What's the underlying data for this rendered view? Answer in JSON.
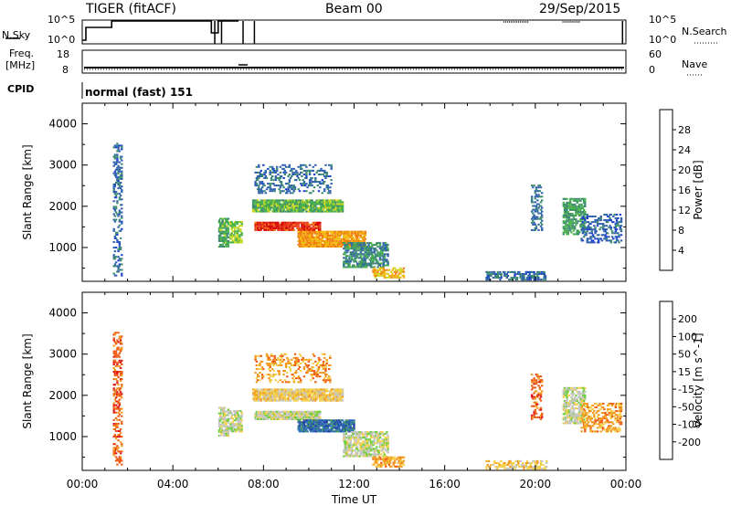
{
  "header": {
    "station": "TIGER (fitACF)",
    "beam": "Beam 00",
    "date": "29/Sep/2015"
  },
  "status_panels": {
    "nsky_label": "N.Sky",
    "nsky_ticks": [
      "10^5",
      "10^0"
    ],
    "nsearch_label": "N.Search",
    "nsearch_ticks": [
      "10^5",
      "10^0"
    ],
    "freq_label_1": "Freq.",
    "freq_label_2": "[MHz]",
    "freq_ticks": [
      "18",
      "8"
    ],
    "nave_label": "Nave",
    "nave_ticks": [
      "60",
      "0"
    ],
    "cpid_label": "CPID",
    "cpid_value": "normal (fast) 151"
  },
  "colors": {
    "power_scale": [
      "#1c3fd1",
      "#2e5fb0",
      "#3d8a70",
      "#47b24a",
      "#c8d81e",
      "#f2b80c",
      "#f07c10",
      "#e8371a",
      "#d40000"
    ],
    "velocity_scale": [
      "#223ba8",
      "#2f6fb3",
      "#3c9d58",
      "#6ccf3a",
      "#c4c4c0",
      "#f5d04a",
      "#f39a1a",
      "#ef5a12",
      "#dd1515"
    ]
  },
  "chart_data": [
    {
      "type": "heatmap",
      "name_in_figure": "power",
      "title": "",
      "ylabel": "Slant Range [km]",
      "xlabel": "Time UT",
      "ylim": [
        180,
        4500
      ],
      "y_ticks": [
        "4000",
        "3000",
        "2000",
        "1000"
      ],
      "x_ticks": [
        "00:00",
        "04:00",
        "08:00",
        "12:00",
        "16:00",
        "20:00",
        "00:00"
      ],
      "colorbar_label": "Power [dB]",
      "colorbar_ticks": [
        "28",
        "24",
        "20",
        "16",
        "12",
        "8",
        "4"
      ],
      "colorbar_range": [
        0,
        32
      ],
      "regions": [
        {
          "t0": 1.35,
          "t1": 1.75,
          "r0": 300,
          "r1": 3500,
          "v": 5,
          "density": 0.35
        },
        {
          "t0": 6.0,
          "t1": 6.4,
          "r0": 1000,
          "r1": 1700,
          "v": 11,
          "density": 0.7
        },
        {
          "t0": 6.5,
          "t1": 7.0,
          "r0": 1100,
          "r1": 1600,
          "v": 14,
          "density": 0.6
        },
        {
          "t0": 7.5,
          "t1": 11.5,
          "r0": 1850,
          "r1": 2150,
          "v": 12,
          "density": 0.8
        },
        {
          "t0": 7.6,
          "t1": 10.5,
          "r0": 1400,
          "r1": 1600,
          "v": 28,
          "density": 0.85
        },
        {
          "t0": 9.5,
          "t1": 12.5,
          "r0": 1000,
          "r1": 1400,
          "v": 22,
          "density": 0.8
        },
        {
          "t0": 7.6,
          "t1": 11.0,
          "r0": 2300,
          "r1": 3000,
          "v": 5,
          "density": 0.25
        },
        {
          "t0": 11.5,
          "t1": 13.5,
          "r0": 500,
          "r1": 1100,
          "v": 8,
          "density": 0.6
        },
        {
          "t0": 12.8,
          "t1": 14.2,
          "r0": 250,
          "r1": 500,
          "v": 20,
          "density": 0.5
        },
        {
          "t0": 17.8,
          "t1": 20.5,
          "r0": 200,
          "r1": 420,
          "v": 5,
          "density": 0.45
        },
        {
          "t0": 19.8,
          "t1": 20.3,
          "r0": 1400,
          "r1": 2500,
          "v": 6,
          "density": 0.35
        },
        {
          "t0": 21.2,
          "t1": 22.2,
          "r0": 1300,
          "r1": 2200,
          "v": 10,
          "density": 0.55
        },
        {
          "t0": 22.0,
          "t1": 23.8,
          "r0": 1100,
          "r1": 1800,
          "v": 4,
          "density": 0.35
        }
      ]
    },
    {
      "type": "heatmap",
      "name_in_figure": "velocity",
      "title": "",
      "ylabel": "Slant Range [km]",
      "xlabel": "Time UT",
      "ylim": [
        180,
        4500
      ],
      "y_ticks": [
        "4000",
        "3000",
        "2000",
        "1000"
      ],
      "x_ticks": [
        "00:00",
        "04:00",
        "08:00",
        "12:00",
        "16:00",
        "20:00",
        "00:00"
      ],
      "colorbar_label": "Velocity [m s^-1]",
      "colorbar_ticks": [
        "200",
        "100",
        "50",
        "15",
        "-15",
        "-50",
        "-100",
        "-200"
      ],
      "regions": [
        {
          "t0": 1.35,
          "t1": 1.75,
          "r0": 300,
          "r1": 3500,
          "v": 7,
          "density": 0.35
        },
        {
          "t0": 6.0,
          "t1": 6.4,
          "r0": 1000,
          "r1": 1700,
          "v": 4,
          "density": 0.7
        },
        {
          "t0": 6.5,
          "t1": 7.0,
          "r0": 1100,
          "r1": 1600,
          "v": 4,
          "density": 0.6
        },
        {
          "t0": 7.5,
          "t1": 11.5,
          "r0": 1850,
          "r1": 2150,
          "v": 5,
          "density": 0.8
        },
        {
          "t0": 7.6,
          "t1": 10.5,
          "r0": 1400,
          "r1": 1600,
          "v": 4,
          "density": 0.85
        },
        {
          "t0": 9.5,
          "t1": 12.0,
          "r0": 1100,
          "r1": 1400,
          "v": 1,
          "density": 0.8
        },
        {
          "t0": 7.6,
          "t1": 11.0,
          "r0": 2300,
          "r1": 3000,
          "v": 6,
          "density": 0.25
        },
        {
          "t0": 11.5,
          "t1": 13.5,
          "r0": 500,
          "r1": 1100,
          "v": 4,
          "density": 0.6
        },
        {
          "t0": 12.8,
          "t1": 14.2,
          "r0": 250,
          "r1": 500,
          "v": 6,
          "density": 0.5
        },
        {
          "t0": 17.8,
          "t1": 20.5,
          "r0": 200,
          "r1": 420,
          "v": 5,
          "density": 0.45
        },
        {
          "t0": 19.8,
          "t1": 20.3,
          "r0": 1400,
          "r1": 2500,
          "v": 7,
          "density": 0.35
        },
        {
          "t0": 21.2,
          "t1": 22.2,
          "r0": 1300,
          "r1": 2200,
          "v": 4,
          "density": 0.55
        },
        {
          "t0": 22.0,
          "t1": 23.8,
          "r0": 1100,
          "r1": 1800,
          "v": 6,
          "density": 0.35
        }
      ]
    }
  ]
}
